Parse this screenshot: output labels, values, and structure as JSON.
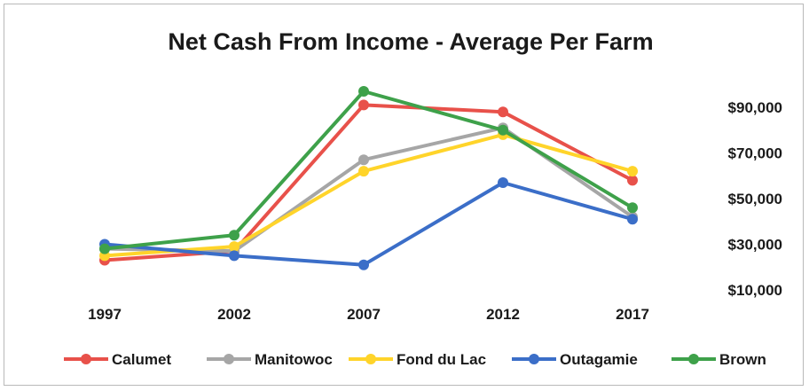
{
  "chart_data": {
    "type": "line",
    "title": "Net Cash From Income - Average Per Farm",
    "xlabel": "",
    "ylabel": "",
    "categories": [
      "1997",
      "2002",
      "2007",
      "2012",
      "2017"
    ],
    "y_ticks": [
      "$10,000",
      "$30,000",
      "$50,000",
      "$70,000",
      "$90,000"
    ],
    "y_tick_values": [
      10000,
      30000,
      50000,
      70000,
      90000
    ],
    "ylim": [
      10000,
      100000
    ],
    "y_axis_side": "right",
    "grid": false,
    "legend_position": "bottom",
    "series": [
      {
        "name": "Calumet",
        "color": "#e8514a",
        "values": [
          23000,
          27000,
          91000,
          88000,
          58000
        ]
      },
      {
        "name": "Manitowoc",
        "color": "#a6a6a6",
        "values": [
          28000,
          27000,
          67000,
          81000,
          42000
        ]
      },
      {
        "name": "Fond du Lac",
        "color": "#ffd42a",
        "values": [
          25000,
          29000,
          62000,
          78000,
          62000
        ]
      },
      {
        "name": "Outagamie",
        "color": "#3b6ec8",
        "values": [
          30000,
          25000,
          21000,
          57000,
          41000
        ]
      },
      {
        "name": "Brown",
        "color": "#3ea14a",
        "values": [
          28000,
          34000,
          97000,
          80000,
          46000
        ]
      }
    ]
  }
}
